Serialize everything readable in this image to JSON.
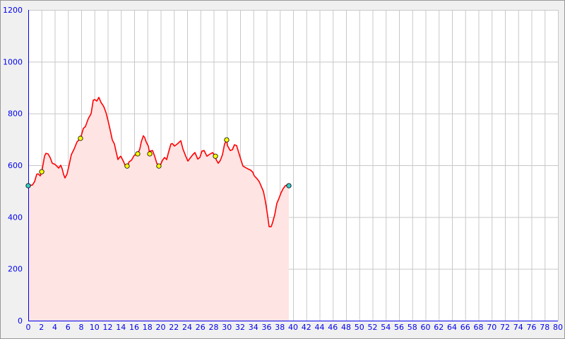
{
  "chart_data": {
    "type": "area",
    "title": "",
    "xlabel": "",
    "ylabel": "",
    "xlim": [
      0,
      80
    ],
    "ylim": [
      0,
      1200
    ],
    "x_ticks": [
      0,
      2,
      4,
      6,
      8,
      10,
      12,
      14,
      16,
      18,
      20,
      22,
      24,
      26,
      28,
      30,
      32,
      34,
      36,
      38,
      40,
      42,
      44,
      46,
      48,
      50,
      52,
      54,
      56,
      58,
      60,
      62,
      64,
      66,
      68,
      70,
      72,
      74,
      76,
      78,
      80
    ],
    "y_ticks": [
      0,
      200,
      400,
      600,
      800,
      1000,
      1200
    ],
    "grid": true,
    "colors": {
      "line": "#ff0000",
      "fill": "#ffe4e4",
      "axis": "#0000ee",
      "grid": "#c8c8c8",
      "waypoint": "#ffff00",
      "endpoint": "#33cccc"
    },
    "x": [
      0,
      0.64,
      0.96,
      1.28,
      1.49,
      1.81,
      2.03,
      2.24,
      2.45,
      2.67,
      2.99,
      3.31,
      3.63,
      4.05,
      4.37,
      4.59,
      4.91,
      5.12,
      5.33,
      5.55,
      5.87,
      6.19,
      6.51,
      6.93,
      7.36,
      7.89,
      8.32,
      8.64,
      9.07,
      9.49,
      9.81,
      10.03,
      10.35,
      10.67,
      10.99,
      11.41,
      11.73,
      12.05,
      12.37,
      12.69,
      13.01,
      13.23,
      13.55,
      13.76,
      13.97,
      14.4,
      14.61,
      14.93,
      15.25,
      15.57,
      16.0,
      16.53,
      16.85,
      17.07,
      17.39,
      17.6,
      17.81,
      18.13,
      18.35,
      18.45,
      18.77,
      19.09,
      19.41,
      19.73,
      19.95,
      20.27,
      20.59,
      20.91,
      21.12,
      21.33,
      21.55,
      21.76,
      22.08,
      22.51,
      23.04,
      23.36,
      23.79,
      24.11,
      24.43,
      24.85,
      25.17,
      25.6,
      25.92,
      26.24,
      26.56,
      26.99,
      27.31,
      27.84,
      28.27,
      28.37,
      28.69,
      29.01,
      29.33,
      29.65,
      29.97,
      30.08,
      30.51,
      30.83,
      31.15,
      31.47,
      31.79,
      32.11,
      32.43,
      32.75,
      33.17,
      33.6,
      33.92,
      34.13,
      34.56,
      34.88,
      35.2,
      35.52,
      35.84,
      36.16,
      36.37,
      36.69,
      36.91,
      37.23,
      37.55,
      37.87,
      38.19,
      38.51,
      38.83,
      39.25,
      39.36
    ],
    "y": [
      521,
      524,
      537,
      565,
      567,
      559,
      575,
      603,
      635,
      646,
      644,
      630,
      608,
      603,
      595,
      589,
      600,
      586,
      565,
      551,
      567,
      603,
      641,
      663,
      690,
      704,
      742,
      750,
      780,
      799,
      851,
      854,
      848,
      862,
      843,
      826,
      804,
      772,
      736,
      698,
      682,
      657,
      622,
      630,
      635,
      614,
      600,
      597,
      614,
      619,
      638,
      644,
      663,
      690,
      714,
      706,
      690,
      674,
      644,
      655,
      657,
      635,
      608,
      597,
      600,
      619,
      630,
      622,
      644,
      663,
      682,
      684,
      674,
      682,
      695,
      663,
      635,
      616,
      627,
      641,
      649,
      624,
      630,
      655,
      657,
      635,
      641,
      649,
      635,
      622,
      608,
      619,
      641,
      682,
      698,
      676,
      657,
      660,
      679,
      676,
      649,
      622,
      597,
      592,
      586,
      581,
      573,
      559,
      548,
      537,
      518,
      499,
      458,
      404,
      363,
      363,
      379,
      409,
      453,
      472,
      494,
      510,
      521,
      526,
      521
    ],
    "waypoints": [
      {
        "x": 2.03,
        "y": 575
      },
      {
        "x": 7.89,
        "y": 704
      },
      {
        "x": 14.93,
        "y": 597
      },
      {
        "x": 16.53,
        "y": 644
      },
      {
        "x": 18.35,
        "y": 644
      },
      {
        "x": 19.73,
        "y": 597
      },
      {
        "x": 28.27,
        "y": 635
      },
      {
        "x": 29.97,
        "y": 698
      }
    ],
    "endpoints": [
      {
        "x": 0,
        "y": 521
      },
      {
        "x": 39.36,
        "y": 521
      }
    ]
  }
}
